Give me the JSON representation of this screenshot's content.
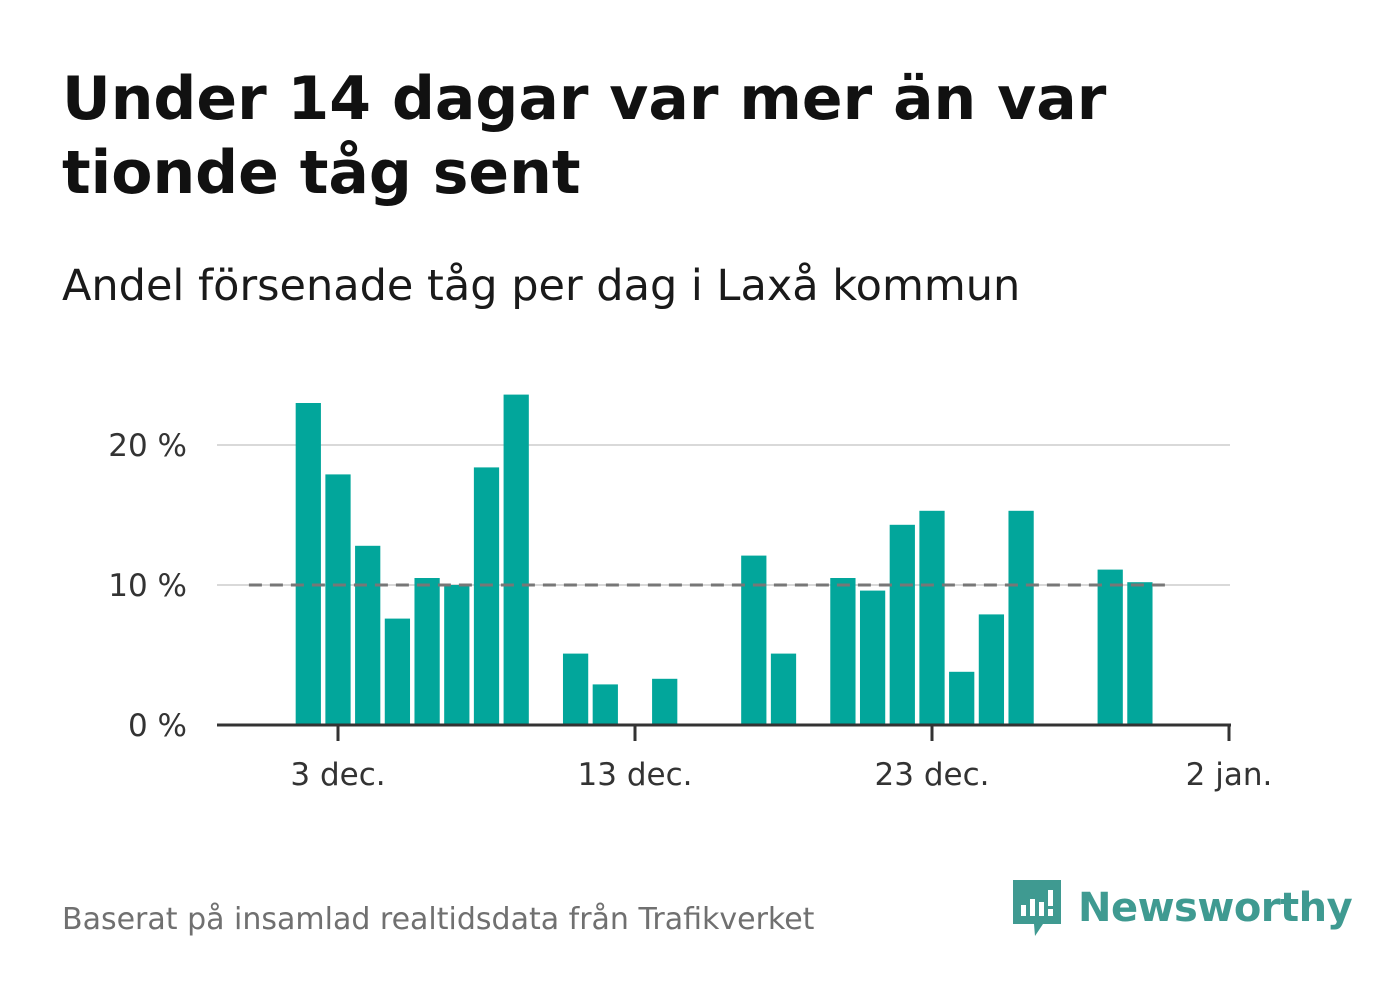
{
  "title": "Under 14 dagar var mer än var tionde tåg sent",
  "subtitle": "Andel försenade tåg per dag i Laxå kommun",
  "source": "Baserat på insamlad realtidsdata från Trafikverket",
  "brand": {
    "name": "Newsworthy",
    "icon": "newsworthy-logo-icon",
    "color": "#3f9a91"
  },
  "colors": {
    "bar": "#02a69b",
    "reference_line": "#777777",
    "grid": "#d9d9d9",
    "axis": "#333333"
  },
  "chart_data": {
    "type": "bar",
    "title": "Under 14 dagar var mer än var tionde tåg sent",
    "subtitle": "Andel försenade tåg per dag i Laxå kommun",
    "xlabel": "",
    "ylabel": "",
    "x_ticks": [
      {
        "date": "2022-12-03",
        "label": "3 dec."
      },
      {
        "date": "2022-12-13",
        "label": "13 dec."
      },
      {
        "date": "2022-12-23",
        "label": "23 dec."
      },
      {
        "date": "2023-01-02",
        "label": "2 jan."
      }
    ],
    "y_ticks": [
      {
        "value": 0,
        "label": "0 %"
      },
      {
        "value": 10,
        "label": "10 %"
      },
      {
        "value": 20,
        "label": "20 %"
      }
    ],
    "ylim": [
      0,
      24
    ],
    "xlim": [
      "2022-11-29",
      "2023-01-02"
    ],
    "grid": true,
    "reference_line": {
      "value": 10,
      "style": "dashed",
      "from": "2022-11-30",
      "to": "2022-12-31"
    },
    "series": [
      {
        "color": "#02a69b",
        "points": [
          {
            "x": "2022-12-02",
            "y": 23.0
          },
          {
            "x": "2022-12-03",
            "y": 17.9
          },
          {
            "x": "2022-12-04",
            "y": 12.8
          },
          {
            "x": "2022-12-05",
            "y": 7.6
          },
          {
            "x": "2022-12-06",
            "y": 10.5
          },
          {
            "x": "2022-12-07",
            "y": 10.0
          },
          {
            "x": "2022-12-08",
            "y": 18.4
          },
          {
            "x": "2022-12-09",
            "y": 23.6
          },
          {
            "x": "2022-12-11",
            "y": 5.1
          },
          {
            "x": "2022-12-12",
            "y": 2.9
          },
          {
            "x": "2022-12-14",
            "y": 3.3
          },
          {
            "x": "2022-12-17",
            "y": 12.1
          },
          {
            "x": "2022-12-18",
            "y": 5.1
          },
          {
            "x": "2022-12-20",
            "y": 10.5
          },
          {
            "x": "2022-12-21",
            "y": 9.6
          },
          {
            "x": "2022-12-22",
            "y": 14.3
          },
          {
            "x": "2022-12-23",
            "y": 15.3
          },
          {
            "x": "2022-12-24",
            "y": 3.8
          },
          {
            "x": "2022-12-25",
            "y": 7.9
          },
          {
            "x": "2022-12-26",
            "y": 15.3
          },
          {
            "x": "2022-12-29",
            "y": 11.1
          },
          {
            "x": "2022-12-30",
            "y": 10.2
          }
        ]
      }
    ]
  }
}
